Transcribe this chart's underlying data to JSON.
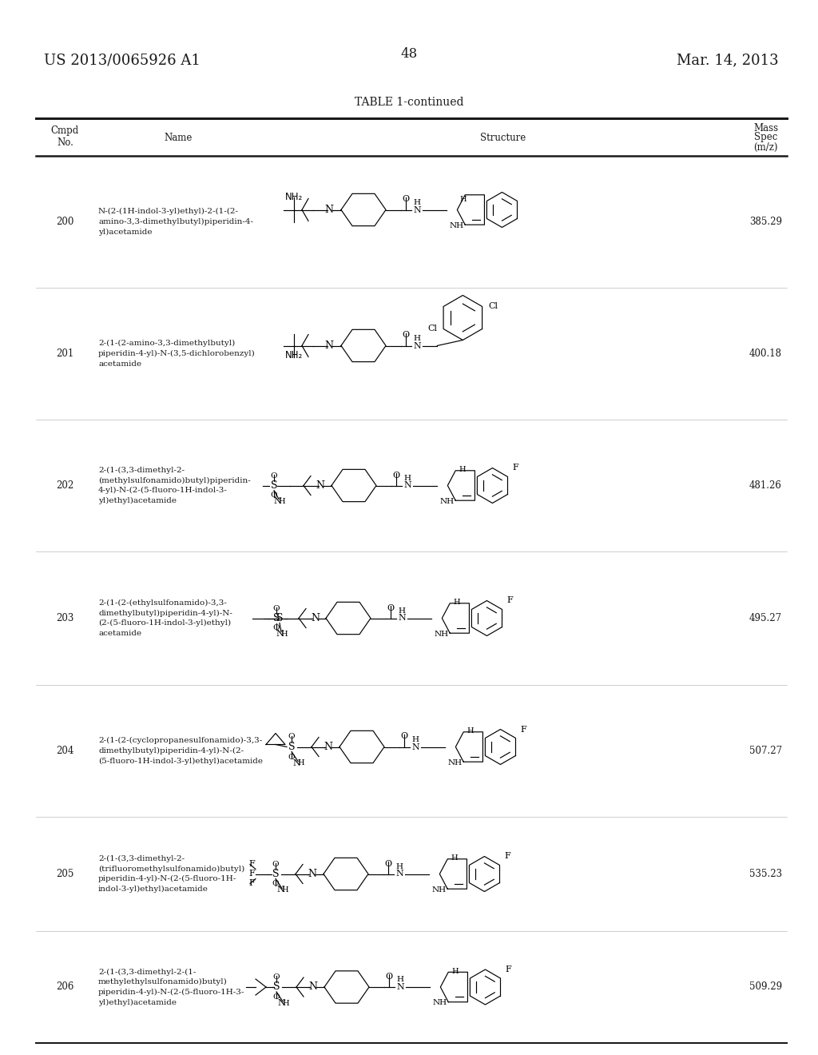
{
  "patent_number": "US 2013/0065926 A1",
  "patent_date": "Mar. 14, 2013",
  "page_number": "48",
  "table_title": "TABLE 1-continued",
  "background": "#ffffff",
  "text_color": "#1a1a1a",
  "rows": [
    {
      "num": "200",
      "name": "N-(2-(1H-indol-3-yl)ethyl)-2-(1-(2-\namino-3,3-dimethylbutyl)piperidin-4-\nyl)acetamide",
      "mass": "385.29"
    },
    {
      "num": "201",
      "name": "2-(1-(2-amino-3,3-dimethylbutyl)\npiperidin-4-yl)-N-(3,5-dichlorobenzyl)\nacetamide",
      "mass": "400.18"
    },
    {
      "num": "202",
      "name": "2-(1-(3,3-dimethyl-2-\n(methylsulfonamido)butyl)piperidin-\n4-yl)-N-(2-(5-fluoro-1H-indol-3-\nyl)ethyl)acetamide",
      "mass": "481.26"
    },
    {
      "num": "203",
      "name": "2-(1-(2-(ethylsulfonamido)-3,3-\ndimethylbutyl)piperidin-4-yl)-N-\n(2-(5-fluoro-1H-indol-3-yl)ethyl)\nacetamide",
      "mass": "495.27"
    },
    {
      "num": "204",
      "name": "2-(1-(2-(cyclopropanesulfonamido)-3,3-\ndimethylbutyl)piperidin-4-yl)-N-(2-\n(5-fluoro-1H-indol-3-yl)ethyl)acetamide",
      "mass": "507.27"
    },
    {
      "num": "205",
      "name": "2-(1-(3,3-dimethyl-2-\n(trifluoromethylsulfonamido)butyl)\npiperidin-4-yl)-N-(2-(5-fluoro-1H-\nindol-3-yl)ethyl)acetamide",
      "mass": "535.23"
    },
    {
      "num": "206",
      "name": "2-(1-(3,3-dimethyl-2-(1-\nmethylethylsulfonamido)butyl)\npiperidin-4-yl)-N-(2-(5-fluoro-1H-3-\nyl)ethyl)acetamide",
      "mass": "509.29"
    }
  ]
}
